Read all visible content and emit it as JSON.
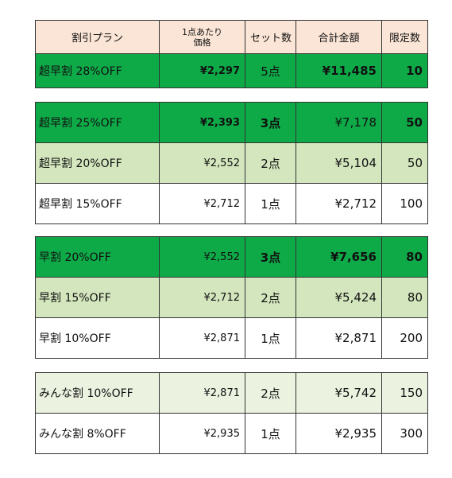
{
  "header": {
    "plan": "割引プラン",
    "unit_price_line1": "1点あたり",
    "unit_price_line2": "価格",
    "sets": "セット数",
    "total": "合計金額",
    "limit": "限定数"
  },
  "groups": [
    [
      {
        "name": "超早割 28%OFF",
        "price": "¥2,297",
        "sets": "5点",
        "total": "¥11,485",
        "limit": "10"
      }
    ],
    [
      {
        "name": "超早割 25%OFF",
        "price": "¥2,393",
        "sets": "3点",
        "total": "¥7,178",
        "limit": "50"
      },
      {
        "name": "超早割 20%OFF",
        "price": "¥2,552",
        "sets": "2点",
        "total": "¥5,104",
        "limit": "50"
      },
      {
        "name": "超早割 15%OFF",
        "price": "¥2,712",
        "sets": "1点",
        "total": "¥2,712",
        "limit": "100"
      }
    ],
    [
      {
        "name": "早割 20%OFF",
        "price": "¥2,552",
        "sets": "3点",
        "total": "¥7,656",
        "limit": "80"
      },
      {
        "name": "早割 15%OFF",
        "price": "¥2,712",
        "sets": "2点",
        "total": "¥5,424",
        "limit": "80"
      },
      {
        "name": "早割 10%OFF",
        "price": "¥2,871",
        "sets": "1点",
        "total": "¥2,871",
        "limit": "200"
      }
    ],
    [
      {
        "name": "みんな割 10%OFF",
        "price": "¥2,871",
        "sets": "2点",
        "total": "¥5,742",
        "limit": "150"
      },
      {
        "name": "みんな割 8%OFF",
        "price": "¥2,935",
        "sets": "1点",
        "total": "¥2,935",
        "limit": "300"
      }
    ]
  ],
  "colors": {
    "header_bg": "#fbe5d6",
    "dark_green": "#0eaa48",
    "light_green": "#d3e6bd",
    "pale_green": "#ebf2df",
    "white": "#ffffff"
  }
}
